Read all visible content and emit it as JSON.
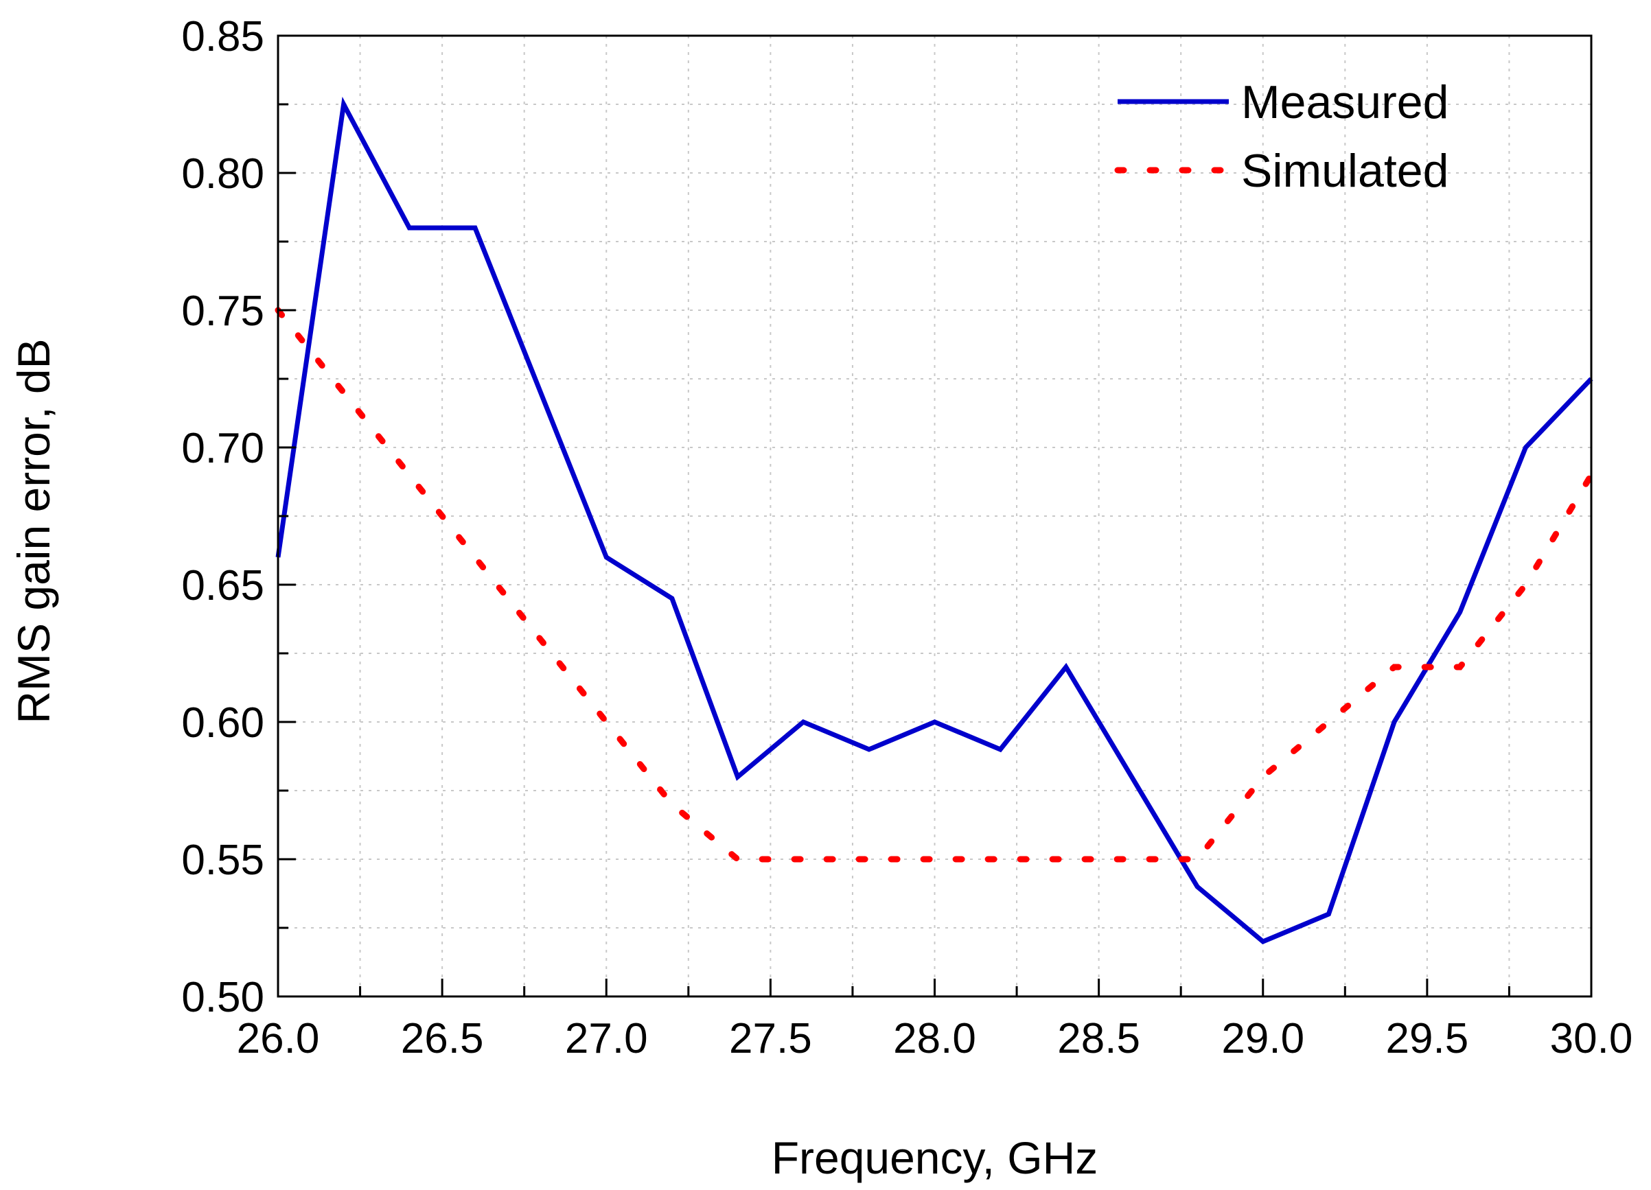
{
  "chart_data": {
    "type": "line",
    "title": "",
    "xlabel": "Frequency, GHz",
    "ylabel": "RMS gain error, dB",
    "xlim": [
      26.0,
      30.0
    ],
    "ylim": [
      0.5,
      0.85
    ],
    "grid": true,
    "legend_position": "top-right",
    "x_ticks": [
      26.0,
      26.5,
      27.0,
      27.5,
      28.0,
      28.5,
      29.0,
      29.5,
      30.0
    ],
    "x_tick_labels": [
      "26.0",
      "26.5",
      "27.0",
      "27.5",
      "28.0",
      "28.5",
      "29.0",
      "29.5",
      "30.0"
    ],
    "y_ticks": [
      0.5,
      0.55,
      0.6,
      0.65,
      0.7,
      0.75,
      0.8,
      0.85
    ],
    "y_tick_labels": [
      "0.50",
      "0.55",
      "0.60",
      "0.65",
      "0.70",
      "0.75",
      "0.80",
      "0.85"
    ],
    "series": [
      {
        "name": "Measured",
        "style": "solid",
        "color": "#0000cc",
        "x": [
          26.0,
          26.2,
          26.4,
          26.6,
          26.8,
          27.0,
          27.2,
          27.4,
          27.6,
          27.8,
          28.0,
          28.2,
          28.4,
          28.6,
          28.8,
          29.0,
          29.2,
          29.4,
          29.6,
          29.8,
          30.0
        ],
        "values": [
          0.66,
          0.825,
          0.78,
          0.78,
          0.72,
          0.66,
          0.645,
          0.58,
          0.6,
          0.59,
          0.6,
          0.59,
          0.62,
          0.58,
          0.54,
          0.52,
          0.53,
          0.6,
          0.64,
          0.7,
          0.725
        ]
      },
      {
        "name": "Simulated",
        "style": "dotted",
        "color": "#ff0000",
        "x": [
          26.0,
          26.2,
          26.4,
          26.6,
          26.8,
          27.0,
          27.2,
          27.4,
          27.6,
          27.8,
          28.0,
          28.2,
          28.4,
          28.6,
          28.8,
          29.0,
          29.2,
          29.4,
          29.6,
          29.8,
          30.0
        ],
        "values": [
          0.75,
          0.72,
          0.69,
          0.66,
          0.63,
          0.6,
          0.57,
          0.55,
          0.55,
          0.55,
          0.55,
          0.55,
          0.55,
          0.55,
          0.55,
          0.58,
          0.6,
          0.62,
          0.62,
          0.65,
          0.69
        ]
      }
    ]
  }
}
